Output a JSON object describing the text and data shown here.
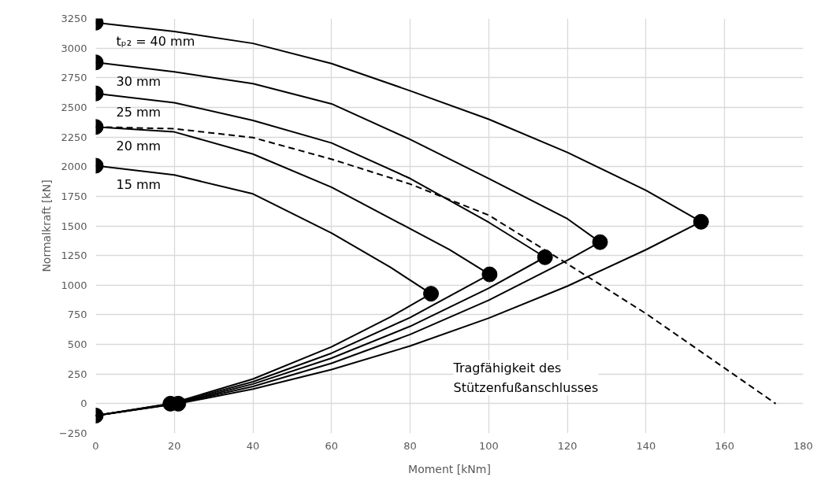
{
  "chart_data": {
    "type": "line",
    "xlabel": "Moment [kNm]",
    "ylabel": "Normalkraft [kN]",
    "xlim": [
      0,
      180
    ],
    "ylim": [
      -250,
      3250
    ],
    "xticks": [
      0,
      20,
      40,
      60,
      80,
      100,
      120,
      140,
      160,
      180
    ],
    "yticks": [
      -250,
      0,
      250,
      500,
      750,
      1000,
      1250,
      1500,
      1750,
      2000,
      2250,
      2500,
      2750,
      3000,
      3250
    ],
    "grid": true,
    "series": [
      {
        "name": "tₚ₂ = 40 mm",
        "color": "#000000",
        "line_style": "solid",
        "x": [
          0,
          20,
          40,
          60,
          80,
          100,
          120,
          140,
          154,
          140,
          120,
          100,
          80,
          60,
          40,
          21,
          0
        ],
        "values": [
          3215,
          3140,
          3040,
          2870,
          2640,
          2400,
          2120,
          1800,
          1535,
          1299,
          992,
          722,
          487,
          288,
          123,
          0,
          -100
        ]
      },
      {
        "name": "30 mm",
        "color": "#000000",
        "line_style": "solid",
        "x": [
          0,
          20,
          40,
          60,
          80,
          100,
          120,
          128.3,
          120,
          100,
          80,
          60,
          40,
          20.5,
          0
        ],
        "values": [
          2880,
          2800,
          2700,
          2530,
          2230,
          1900,
          1560,
          1363,
          1210,
          873,
          584,
          341,
          145,
          0,
          -100
        ]
      },
      {
        "name": "25 mm",
        "color": "#000000",
        "line_style": "solid",
        "x": [
          0,
          20,
          40,
          60,
          80,
          100,
          114.3,
          100,
          80,
          60,
          40,
          20,
          0
        ],
        "values": [
          2618,
          2540,
          2390,
          2200,
          1900,
          1530,
          1236,
          975,
          653,
          384,
          166,
          0,
          -100
        ]
      },
      {
        "name": "20 mm",
        "color": "#000000",
        "line_style": "solid",
        "x": [
          0,
          20,
          40,
          60,
          80,
          90,
          100.2,
          80,
          60,
          40,
          19.5,
          0
        ],
        "values": [
          2335,
          2293,
          2106,
          1826,
          1476,
          1300,
          1091,
          727,
          426,
          185,
          0,
          -100
        ]
      },
      {
        "name": "15 mm",
        "color": "#000000",
        "line_style": "solid",
        "x": [
          0,
          20,
          40,
          60,
          75,
          85.3,
          75,
          60,
          40,
          19,
          0
        ],
        "values": [
          2008,
          1930,
          1770,
          1440,
          1150,
          928,
          732,
          480,
          208,
          0,
          -100
        ]
      },
      {
        "color": "#000000",
        "line_style": "dashed",
        "x": [
          0,
          20,
          40,
          60,
          80,
          100,
          120,
          140,
          160,
          173
        ],
        "values": [
          2335,
          2320,
          2245,
          2063,
          1853,
          1590,
          1180,
          760,
          300,
          0
        ]
      },
      {
        "type": "scatter",
        "color": "#000000",
        "marker": "circle",
        "x": [
          0,
          0,
          0,
          0,
          0,
          154,
          128.3,
          114.3,
          100.2,
          85.3,
          21,
          19,
          0
        ],
        "values": [
          3215,
          2880,
          2618,
          2335,
          2008,
          1535,
          1363,
          1236,
          1091,
          928,
          0,
          0,
          -100
        ]
      }
    ],
    "annotations": [
      "Tragfähigkeit des\nStützenfußanschlusses"
    ]
  }
}
